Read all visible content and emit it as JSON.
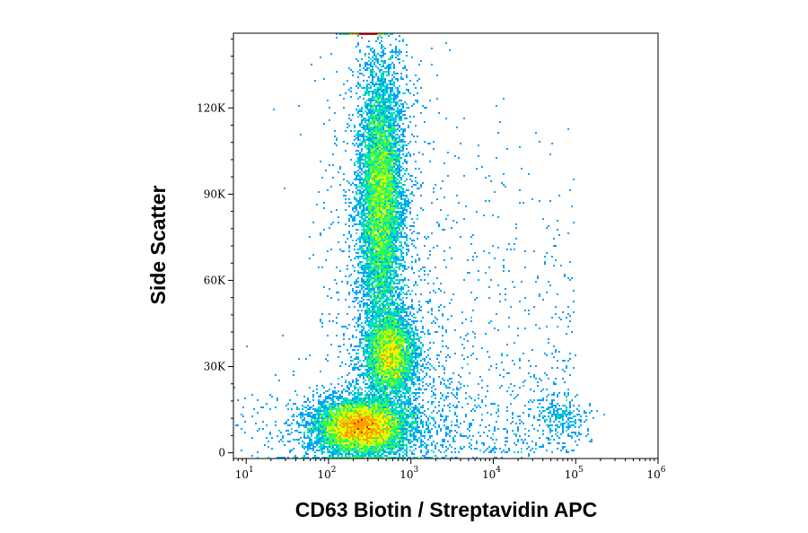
{
  "chart_data": {
    "type": "scatter",
    "subtype": "flow-cytometry-density-plot",
    "xlabel": "CD63 Biotin / Streptavidin APC",
    "ylabel": "Side Scatter",
    "x_scale": "log",
    "xlim": [
      7,
      1000000
    ],
    "ylim": [
      -2000,
      146000
    ],
    "x_ticks": [
      {
        "value": 10,
        "base": "10",
        "exp": "1"
      },
      {
        "value": 100,
        "base": "10",
        "exp": "2"
      },
      {
        "value": 1000,
        "base": "10",
        "exp": "3"
      },
      {
        "value": 10000,
        "base": "10",
        "exp": "4"
      },
      {
        "value": 100000,
        "base": "10",
        "exp": "5"
      },
      {
        "value": 1000000,
        "base": "10",
        "exp": "6"
      }
    ],
    "y_ticks": [
      {
        "value": 0,
        "label": "0"
      },
      {
        "value": 30000,
        "label": "30K"
      },
      {
        "value": 60000,
        "label": "60K"
      },
      {
        "value": 90000,
        "label": "90K"
      },
      {
        "value": 120000,
        "label": "120K"
      }
    ],
    "populations": [
      {
        "x_center": 250,
        "y_center": 9000,
        "x_spread_log": 0.26,
        "y_spread": 4500,
        "events": 9000
      },
      {
        "x_center": 430,
        "y_center": 88000,
        "x_spread_log": 0.13,
        "y_spread": 22000,
        "events": 8000
      },
      {
        "x_center": 560,
        "y_center": 34000,
        "x_spread_log": 0.14,
        "y_spread": 7000,
        "events": 4500
      },
      {
        "x_center": 70000,
        "y_center": 12000,
        "x_spread_log": 0.15,
        "y_spread": 4000,
        "events": 220
      }
    ],
    "colormap": [
      "#0000ff",
      "#00a0ff",
      "#00e0c0",
      "#40ff40",
      "#e0ff00",
      "#ffa000",
      "#ff0000"
    ]
  }
}
